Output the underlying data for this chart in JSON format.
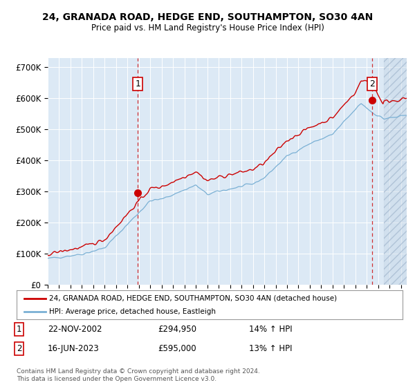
{
  "title1": "24, GRANADA ROAD, HEDGE END, SOUTHAMPTON, SO30 4AN",
  "title2": "Price paid vs. HM Land Registry's House Price Index (HPI)",
  "ylabel_ticks": [
    "£0",
    "£100K",
    "£200K",
    "£300K",
    "£400K",
    "£500K",
    "£600K",
    "£700K"
  ],
  "ytick_values": [
    0,
    100000,
    200000,
    300000,
    400000,
    500000,
    600000,
    700000
  ],
  "ylim": [
    0,
    730000
  ],
  "xlim_start": 1995.0,
  "xlim_end": 2026.5,
  "plot_bg": "#dce9f5",
  "grid_color": "#ffffff",
  "red_line_color": "#cc0000",
  "blue_line_color": "#7ab0d4",
  "sale1_x": 2002.9,
  "sale1_y": 294950,
  "sale1_label": "1",
  "sale2_x": 2023.46,
  "sale2_y": 595000,
  "sale2_label": "2",
  "legend_line1": "24, GRANADA ROAD, HEDGE END, SOUTHAMPTON, SO30 4AN (detached house)",
  "legend_line2": "HPI: Average price, detached house, Eastleigh",
  "table_row1_num": "1",
  "table_row1_date": "22-NOV-2002",
  "table_row1_price": "£294,950",
  "table_row1_hpi": "14% ↑ HPI",
  "table_row2_num": "2",
  "table_row2_date": "16-JUN-2023",
  "table_row2_price": "£595,000",
  "table_row2_hpi": "13% ↑ HPI",
  "footer": "Contains HM Land Registry data © Crown copyright and database right 2024.\nThis data is licensed under the Open Government Licence v3.0."
}
